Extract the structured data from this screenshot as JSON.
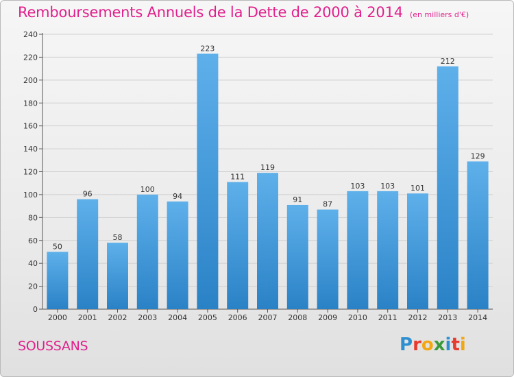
{
  "title": "Remboursements Annuels de la Dette de 2000 à 2014",
  "unit": "(en milliers d'€)",
  "location": "SOUSSANS",
  "logo": {
    "text": "Proxiti",
    "letters": [
      {
        "ch": "P",
        "color": "#2d8fd0"
      },
      {
        "ch": "r",
        "color": "#e63a2e"
      },
      {
        "ch": "o",
        "color": "#f2a712"
      },
      {
        "ch": "x",
        "color": "#3a9a3a"
      },
      {
        "ch": "i",
        "color": "#2d8fd0"
      },
      {
        "ch": "t",
        "color": "#e63a2e"
      },
      {
        "ch": "i",
        "color": "#f2a712"
      }
    ]
  },
  "colors": {
    "title": "#e0208c",
    "bar_top": "#5eb0ea",
    "bar_bottom": "#2a82c6",
    "text": "#333333",
    "grid": "#cfcfcf"
  },
  "chart_data": {
    "type": "bar",
    "categories": [
      "2000",
      "2001",
      "2002",
      "2003",
      "2004",
      "2005",
      "2006",
      "2007",
      "2008",
      "2009",
      "2010",
      "2011",
      "2012",
      "2013",
      "2014"
    ],
    "values": [
      50,
      96,
      58,
      100,
      94,
      223,
      111,
      119,
      91,
      87,
      103,
      103,
      101,
      212,
      129
    ],
    "yticks": [
      0,
      20,
      40,
      60,
      80,
      100,
      120,
      140,
      160,
      180,
      200,
      220,
      240
    ],
    "ylim": [
      0,
      240
    ],
    "grid": true,
    "data_labels": true
  }
}
